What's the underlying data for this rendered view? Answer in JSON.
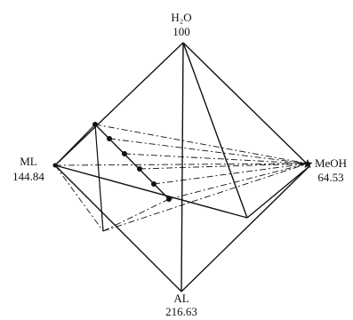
{
  "vertices": {
    "top": {
      "name": "H₂O",
      "temp": "100"
    },
    "left": {
      "name": "ML",
      "temp": "144.84"
    },
    "right": {
      "name": "MeOH",
      "temp": "64.53"
    },
    "bottom": {
      "name": "AL",
      "temp": "216.63"
    }
  },
  "colors": {
    "line": "#111111",
    "background": "#ffffff"
  }
}
